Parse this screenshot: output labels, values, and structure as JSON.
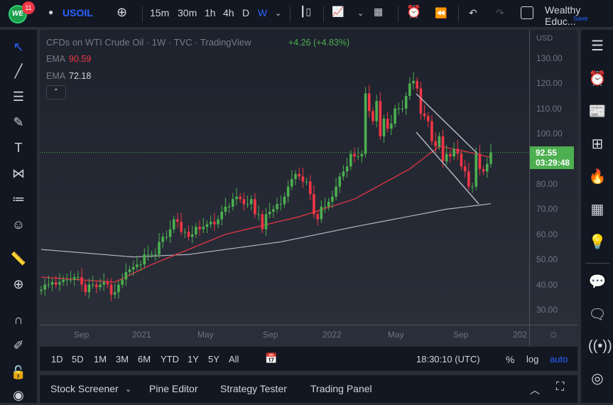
{
  "header": {
    "notifications": "11",
    "symbol": "USOIL",
    "intervals": [
      "15m",
      "30m",
      "1h",
      "4h",
      "D",
      "W"
    ],
    "active_interval": "W",
    "account": "Wealthy Educ...",
    "save": "Save",
    "logo_text": "WE"
  },
  "legend": {
    "title": "CFDs on WTI Crude Oil · 1W · TVC · TradingView",
    "change": "+4.26 (+4.83%)",
    "ema1_label": "EMA",
    "ema1_value": "90.59",
    "ema2_label": "EMA",
    "ema2_value": "72.18"
  },
  "price_axis": {
    "currency": "USD",
    "ticks": [
      "130.00",
      "120.00",
      "110.00",
      "100.00",
      "80.00",
      "70.00",
      "60.00",
      "50.00",
      "40.00",
      "30.00"
    ],
    "last_price": "92.55",
    "countdown": "03:29:48"
  },
  "time_axis": {
    "ticks": [
      "Sep",
      "2021",
      "May",
      "Sep",
      "2022",
      "May",
      "Sep",
      "202"
    ]
  },
  "ranges": [
    "1D",
    "5D",
    "1M",
    "3M",
    "6M",
    "YTD",
    "1Y",
    "5Y",
    "All"
  ],
  "clock": "18:30:10 (UTC)",
  "percent": "%",
  "log": "log",
  "auto": "auto",
  "panel_tabs": [
    "Stock Screener",
    "Pine Editor",
    "Strategy Tester",
    "Trading Panel"
  ],
  "colors": {
    "up": "#4caf50",
    "down": "#f23645",
    "ema_fast": "#f23645",
    "ema_slow": "#b2b5be",
    "accent": "#2962ff"
  },
  "chart_data": {
    "type": "candlestick",
    "ylim": [
      30,
      130
    ],
    "closes": [
      38,
      40,
      40,
      41,
      40,
      41,
      42,
      42,
      42,
      43,
      43,
      40,
      37,
      40,
      40,
      39,
      40,
      41,
      40,
      36,
      37,
      40,
      42,
      45,
      46,
      47,
      48,
      48,
      52,
      52,
      52,
      52,
      57,
      59,
      59,
      62,
      66,
      65,
      61,
      61,
      59,
      60,
      63,
      62,
      63,
      64,
      65,
      64,
      66,
      69,
      71,
      71,
      74,
      75,
      74,
      72,
      72,
      74,
      68,
      68,
      62,
      68,
      69,
      70,
      72,
      72,
      75,
      79,
      82,
      84,
      83,
      81,
      81,
      76,
      68,
      66,
      71,
      71,
      73,
      75,
      79,
      83,
      85,
      87,
      92,
      91,
      91,
      92,
      116,
      109,
      105,
      113,
      99,
      106,
      102,
      104,
      110,
      110,
      110,
      115,
      120,
      121,
      118,
      108,
      107,
      105,
      97,
      95,
      99,
      89,
      92,
      91,
      94,
      92,
      87,
      85,
      79,
      79,
      92,
      86,
      85,
      88,
      92.55
    ],
    "ema_fast": [
      [
        0,
        43
      ],
      [
        20,
        41
      ],
      [
        30,
        48
      ],
      [
        50,
        60
      ],
      [
        70,
        67
      ],
      [
        85,
        74
      ],
      [
        100,
        86
      ],
      [
        108,
        95
      ],
      [
        115,
        93
      ],
      [
        122,
        90.59
      ]
    ],
    "ema_slow": [
      [
        0,
        54
      ],
      [
        25,
        51
      ],
      [
        40,
        52
      ],
      [
        65,
        57
      ],
      [
        85,
        63
      ],
      [
        110,
        70
      ],
      [
        122,
        72.18
      ]
    ]
  }
}
